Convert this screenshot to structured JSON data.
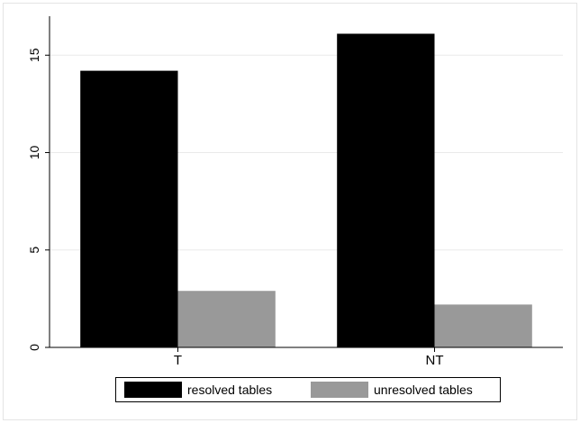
{
  "chart_data": {
    "type": "bar",
    "categories": [
      "T",
      "NT"
    ],
    "series": [
      {
        "name": "resolved tables",
        "values": [
          14.2,
          16.1
        ],
        "color": "#000000"
      },
      {
        "name": "unresolved tables",
        "values": [
          2.9,
          2.2
        ],
        "color": "#999999"
      }
    ],
    "title": "",
    "xlabel": "",
    "ylabel": "",
    "ylim": [
      0,
      17
    ],
    "yticks": [
      0,
      5,
      10,
      15
    ],
    "grid": "horizontal",
    "legend_position": "bottom"
  }
}
